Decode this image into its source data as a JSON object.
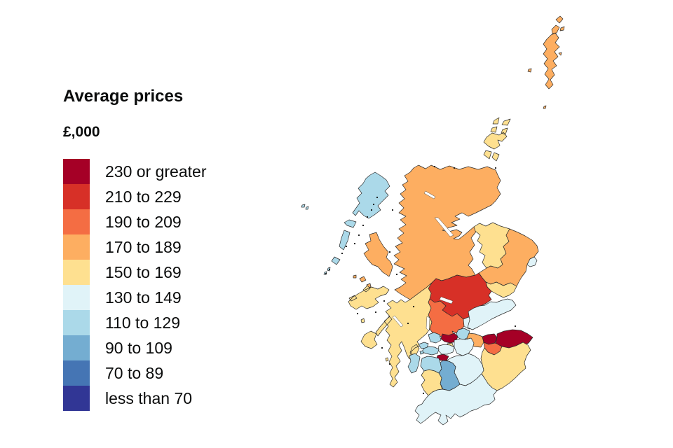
{
  "legend": {
    "title": "Average prices",
    "subtitle": "£,000",
    "items": [
      {
        "label": "230 or greater",
        "color": "#a50026"
      },
      {
        "label": "210 to 229",
        "color": "#d73027"
      },
      {
        "label": "190 to 209",
        "color": "#f46d43"
      },
      {
        "label": "170 to 189",
        "color": "#fdae61"
      },
      {
        "label": "150 to 169",
        "color": "#fee090"
      },
      {
        "label": "130 to 149",
        "color": "#e0f3f8"
      },
      {
        "label": "110 to 129",
        "color": "#abd9e9"
      },
      {
        "label": "90 to 109",
        "color": "#74add1"
      },
      {
        "label": "70 to 89",
        "color": "#4575b4"
      },
      {
        "label": "less than 70",
        "color": "#313695"
      }
    ]
  },
  "map": {
    "description": "Choropleth map of Scotland council areas shaded by average house price band",
    "regions": [
      {
        "name": "shetland",
        "band": "170 to 189",
        "color": "#fdae61"
      },
      {
        "name": "orkney",
        "band": "150 to 169",
        "color": "#fee090"
      },
      {
        "name": "na-h-eileanan-siar",
        "band": "110 to 129",
        "color": "#abd9e9"
      },
      {
        "name": "highland",
        "band": "170 to 189",
        "color": "#fdae61"
      },
      {
        "name": "moray",
        "band": "150 to 169",
        "color": "#fee090"
      },
      {
        "name": "aberdeenshire",
        "band": "170 to 189",
        "color": "#fdae61"
      },
      {
        "name": "aberdeen-city",
        "band": "130 to 149",
        "color": "#e0f3f8"
      },
      {
        "name": "angus",
        "band": "150 to 169",
        "color": "#fee090"
      },
      {
        "name": "perth-and-kinross",
        "band": "210 to 229",
        "color": "#d73027"
      },
      {
        "name": "argyll-and-bute",
        "band": "150 to 169",
        "color": "#fee090"
      },
      {
        "name": "stirling",
        "band": "190 to 209",
        "color": "#f46d43"
      },
      {
        "name": "clackmannanshire",
        "band": "130 to 149",
        "color": "#e0f3f8"
      },
      {
        "name": "fife",
        "band": "130 to 149",
        "color": "#e0f3f8"
      },
      {
        "name": "falkirk",
        "band": "110 to 129",
        "color": "#abd9e9"
      },
      {
        "name": "west-lothian",
        "band": "170 to 189",
        "color": "#fdae61"
      },
      {
        "name": "edinburgh",
        "band": "230 or greater",
        "color": "#a50026"
      },
      {
        "name": "midlothian",
        "band": "190 to 209",
        "color": "#f46d43"
      },
      {
        "name": "east-lothian",
        "band": "230 or greater",
        "color": "#a50026"
      },
      {
        "name": "scottish-borders",
        "band": "150 to 169",
        "color": "#fee090"
      },
      {
        "name": "west-dunbartonshire",
        "band": "110 to 129",
        "color": "#abd9e9"
      },
      {
        "name": "east-dunbartonshire",
        "band": "230 or greater",
        "color": "#a50026"
      },
      {
        "name": "small-area-north-of-glasgow",
        "band": "150 to 169",
        "color": "#fee090"
      },
      {
        "name": "glasgow-city",
        "band": "130 to 149",
        "color": "#e0f3f8"
      },
      {
        "name": "north-lanarkshire",
        "band": "130 to 149",
        "color": "#e0f3f8"
      },
      {
        "name": "south-lanarkshire",
        "band": "130 to 149",
        "color": "#e0f3f8"
      },
      {
        "name": "inverclyde",
        "band": "110 to 129",
        "color": "#abd9e9"
      },
      {
        "name": "renfrewshire",
        "band": "110 to 129",
        "color": "#abd9e9"
      },
      {
        "name": "east-renfrewshire",
        "band": "230 or greater",
        "color": "#a50026"
      },
      {
        "name": "north-ayrshire",
        "band": "110 to 129",
        "color": "#abd9e9"
      },
      {
        "name": "east-ayrshire",
        "band": "90 to 109",
        "color": "#74add1"
      },
      {
        "name": "south-ayrshire",
        "band": "150 to 169",
        "color": "#fee090"
      },
      {
        "name": "dumfries-and-galloway",
        "band": "130 to 149",
        "color": "#e0f3f8"
      }
    ]
  },
  "chart_data": {
    "type": "choropleth",
    "title": "Average prices",
    "unit": "£,000",
    "legend_position": "left",
    "bands": [
      "230 or greater",
      "210 to 229",
      "190 to 209",
      "170 to 189",
      "150 to 169",
      "130 to 149",
      "110 to 129",
      "90 to 109",
      "70 to 89",
      "less than 70"
    ],
    "band_colors": [
      "#a50026",
      "#d73027",
      "#f46d43",
      "#fdae61",
      "#fee090",
      "#e0f3f8",
      "#abd9e9",
      "#74add1",
      "#4575b4",
      "#313695"
    ]
  }
}
